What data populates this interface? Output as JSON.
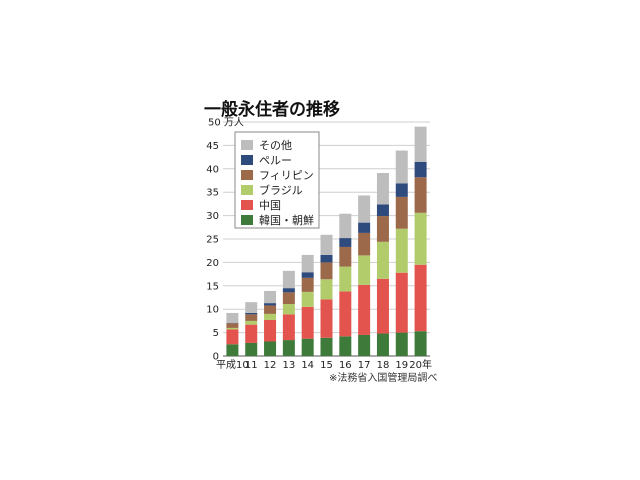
{
  "chart_data": {
    "type": "bar",
    "stacked": true,
    "title": "一般永住者の推移",
    "ylabel": "万人",
    "source": "※法務省入国管理局調べ",
    "ylim": [
      0,
      50
    ],
    "yticks": [
      0,
      5,
      10,
      15,
      20,
      25,
      30,
      35,
      40,
      45,
      50
    ],
    "ytick_labels": [
      "0",
      "5",
      "10",
      "15",
      "20",
      "25",
      "30",
      "35",
      "40",
      "45",
      "50 万人"
    ],
    "grid": true,
    "legend_position": "top-left",
    "categories": [
      "平成10",
      "11",
      "12",
      "13",
      "14",
      "15",
      "16",
      "17",
      "18",
      "19",
      "20年"
    ],
    "series": [
      {
        "name": "韓国・朝鮮",
        "color": "#3e7a3a",
        "values": [
          2.5,
          2.8,
          3.1,
          3.4,
          3.7,
          3.9,
          4.2,
          4.5,
          4.8,
          5.0,
          5.3
        ]
      },
      {
        "name": "中国",
        "color": "#e2544d",
        "values": [
          3.2,
          3.9,
          4.6,
          5.5,
          6.8,
          8.2,
          9.6,
          10.7,
          11.7,
          12.8,
          14.2
        ]
      },
      {
        "name": "ブラジル",
        "color": "#b2cc6c",
        "values": [
          0.3,
          0.8,
          1.3,
          2.2,
          3.2,
          4.3,
          5.3,
          6.3,
          7.9,
          9.4,
          11.1
        ]
      },
      {
        "name": "フィリピン",
        "color": "#9c6a4a",
        "values": [
          1.0,
          1.4,
          1.8,
          2.5,
          3.0,
          3.6,
          4.2,
          4.8,
          5.5,
          6.8,
          7.6
        ]
      },
      {
        "name": "ペルー",
        "color": "#2f4a7c",
        "values": [
          0.1,
          0.3,
          0.5,
          0.9,
          1.2,
          1.6,
          1.9,
          2.2,
          2.5,
          2.9,
          3.3
        ]
      },
      {
        "name": "その他",
        "color": "#bdbdbd",
        "values": [
          2.1,
          2.3,
          2.6,
          3.7,
          3.7,
          4.3,
          5.2,
          5.8,
          6.7,
          7.0,
          7.5
        ]
      }
    ]
  }
}
